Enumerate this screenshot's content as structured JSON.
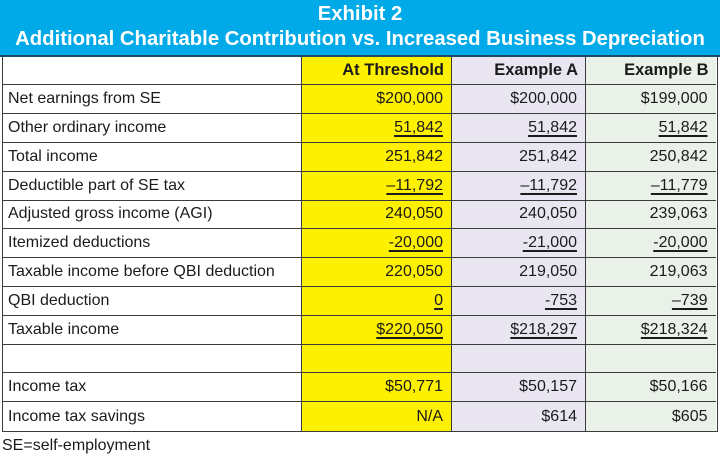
{
  "banner": {
    "title": "Exhibit 2",
    "subtitle": "Additional Charitable Contribution vs. Increased Business Depreciation"
  },
  "table": {
    "column_headers": [
      "",
      "At Threshold",
      "Example A",
      "Example B"
    ],
    "rows": [
      {
        "label": "Net earnings from SE",
        "values": [
          "$200,000",
          "$200,000",
          "$199,000"
        ],
        "underline": false
      },
      {
        "label": "Other ordinary income",
        "values": [
          "51,842",
          "51,842",
          "51,842"
        ],
        "underline": true
      },
      {
        "label": "Total income",
        "values": [
          "251,842",
          "251,842",
          "250,842"
        ],
        "underline": false
      },
      {
        "label": "Deductible part of SE tax",
        "values": [
          "–11,792",
          "–11,792",
          "–11,779"
        ],
        "underline": true
      },
      {
        "label": "Adjusted gross income (AGI)",
        "values": [
          "240,050",
          "240,050",
          "239,063"
        ],
        "underline": false
      },
      {
        "label": "Itemized deductions",
        "values": [
          "-20,000",
          "-21,000",
          "-20,000"
        ],
        "underline": true
      },
      {
        "label": "Taxable income before QBI deduction",
        "values": [
          "220,050",
          "219,050",
          "219,063"
        ],
        "underline": false
      },
      {
        "label": "QBI deduction",
        "values": [
          "0",
          "-753",
          "–739"
        ],
        "underline": true
      },
      {
        "label": "Taxable income",
        "values": [
          "$220,050",
          "$218,297",
          "$218,324"
        ],
        "underline": true
      },
      {
        "label": "",
        "values": [
          "",
          "",
          ""
        ],
        "underline": false
      },
      {
        "label": "Income tax",
        "values": [
          "$50,771",
          "$50,157",
          "$50,166"
        ],
        "underline": false
      },
      {
        "label": "Income tax savings",
        "values": [
          "N/A",
          "$614",
          "$605"
        ],
        "underline": false
      }
    ]
  },
  "footnote": "SE=self-employment",
  "colors": {
    "banner_blue": "#00a9e8",
    "banner_border_navy": "#1a4e66",
    "banner_text": "#ffffff",
    "column_at_threshold": "#fdf000",
    "column_example_a": "#e9e6f2",
    "column_example_b": "#eaf1e9",
    "grid_line": "#3b3b3b",
    "text": "#1b1b1b",
    "label_background": "#ffffff"
  }
}
